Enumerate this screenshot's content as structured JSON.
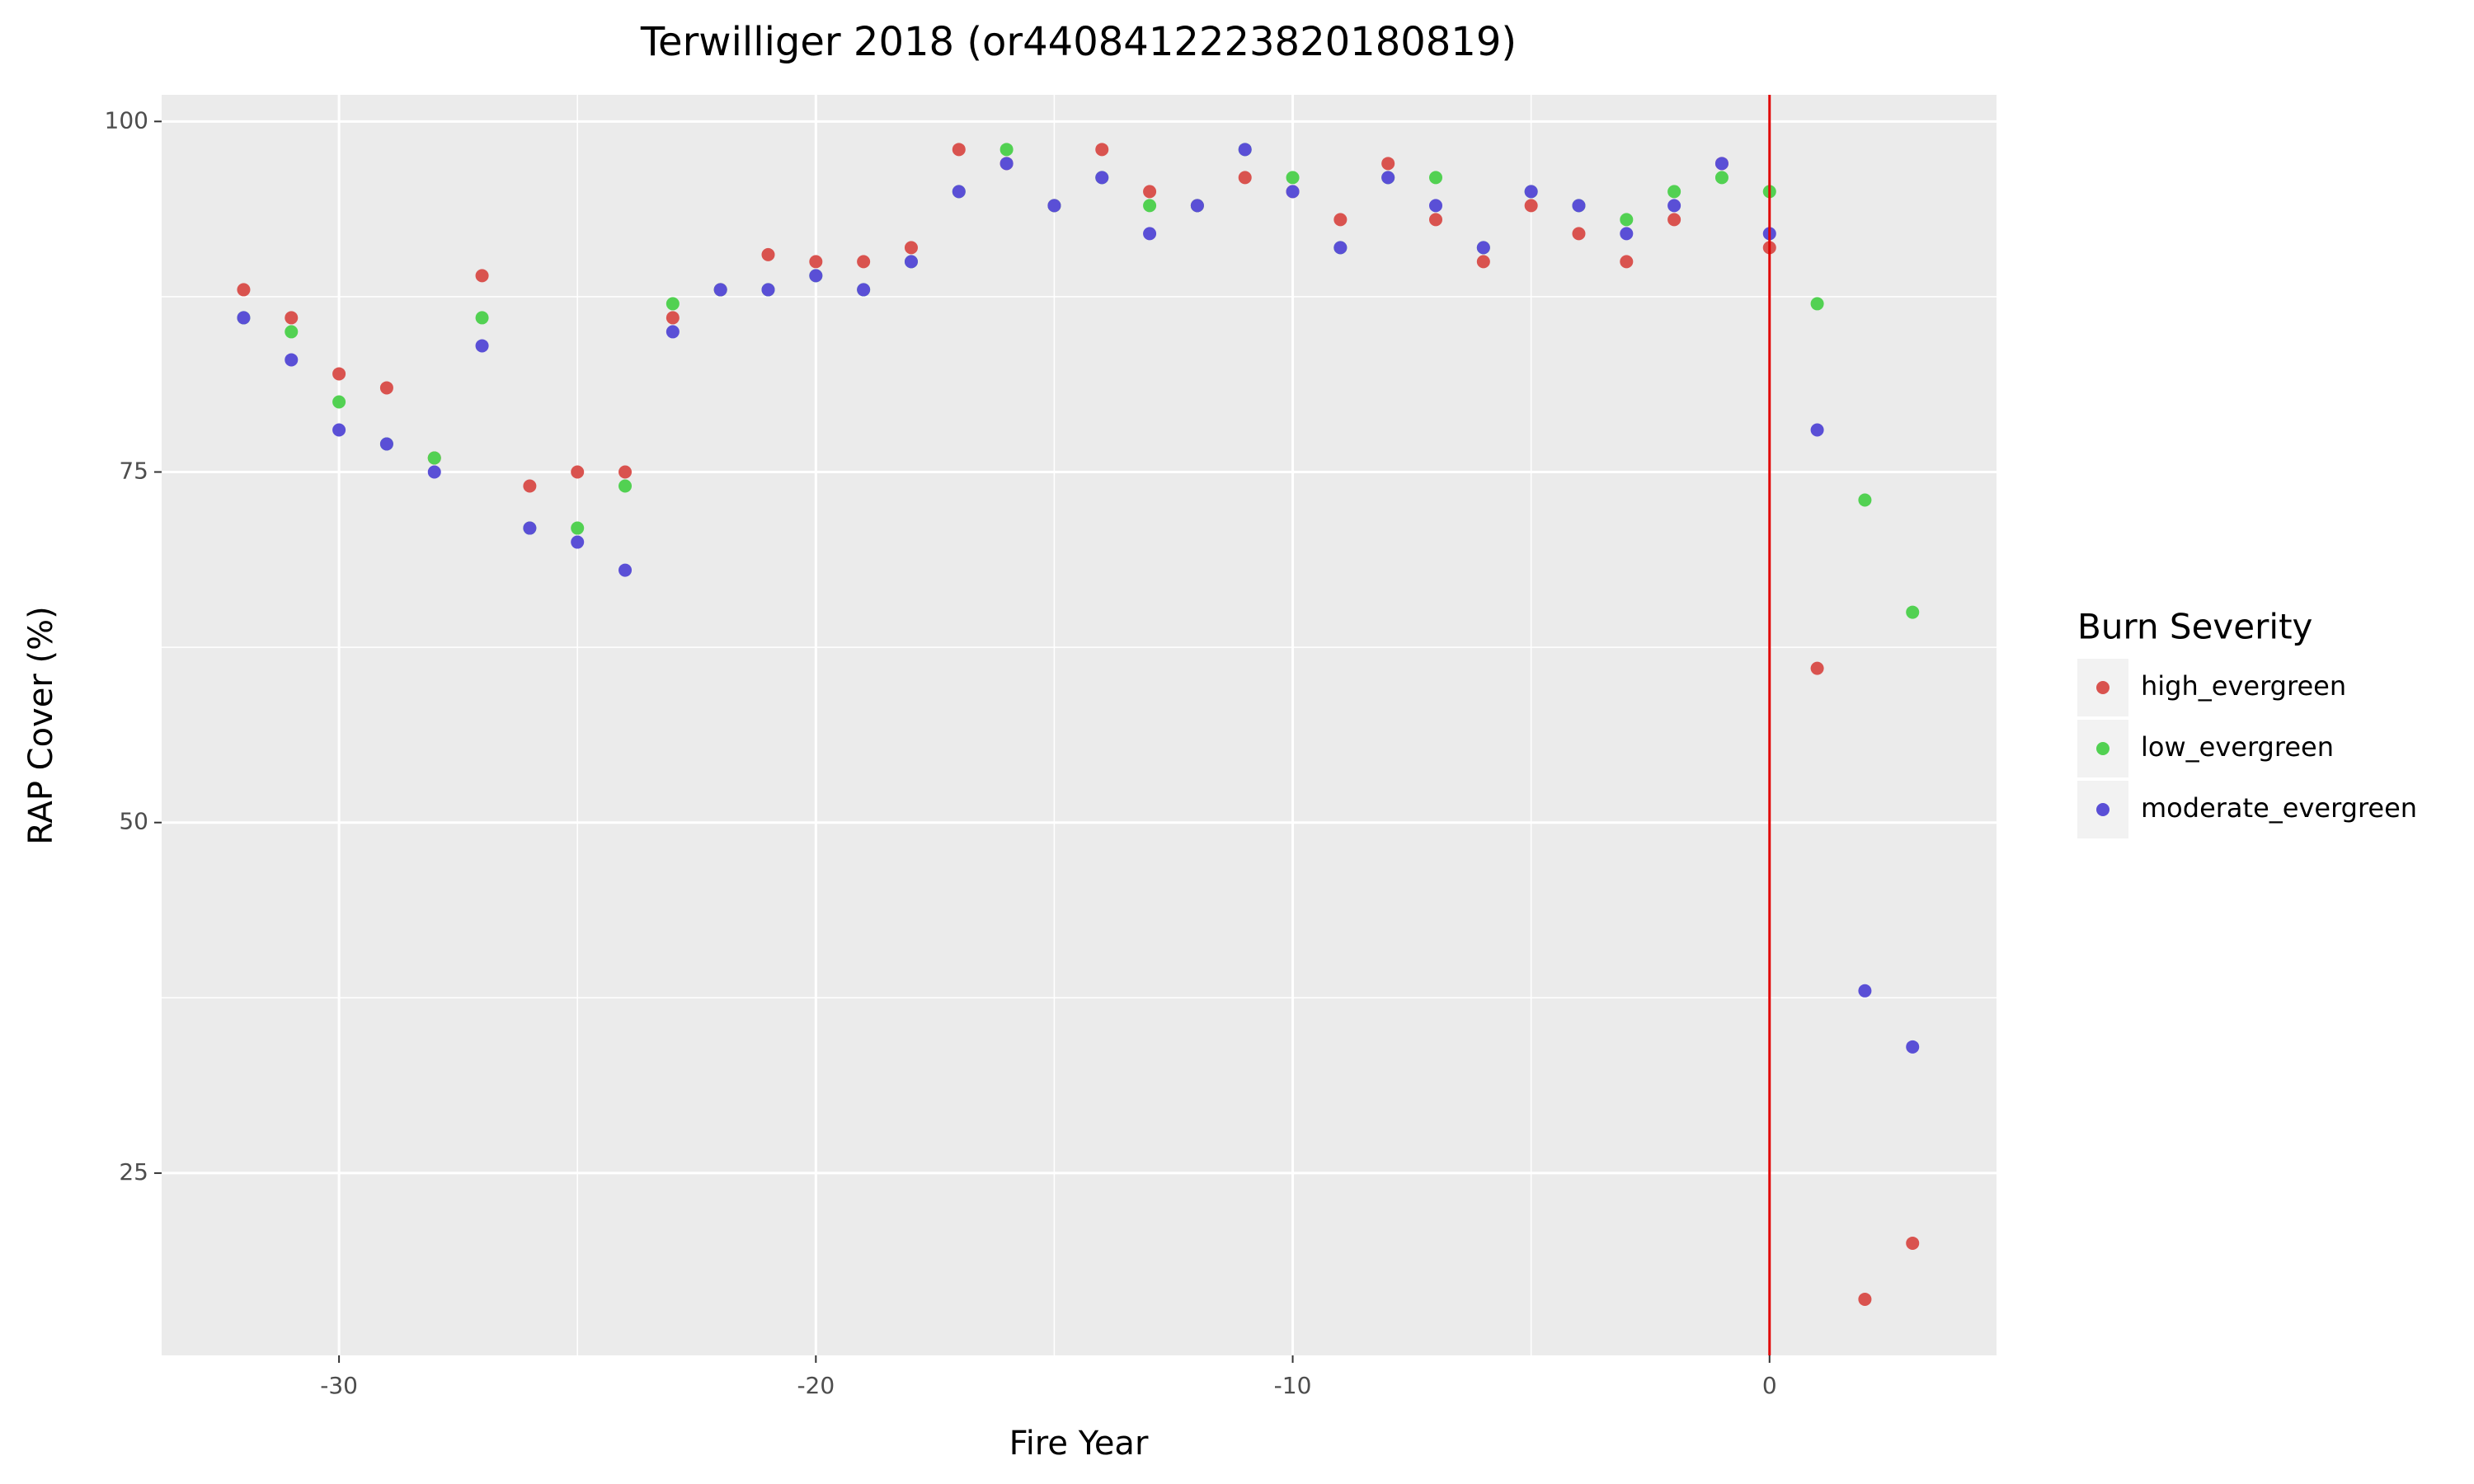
{
  "chart_data": {
    "type": "scatter",
    "title": "Terwilliger 2018 (or4408412223820180819)",
    "x_label": "Fire Year",
    "y_label": "RAP Cover (%)",
    "legend_title": "Burn Severity",
    "legend_position": "right",
    "grid": true,
    "xlim": [
      -33.72,
      4.76
    ],
    "xticks": [
      -30,
      -20,
      -10,
      0
    ],
    "ylim": [
      12,
      101.9
    ],
    "yticks": [
      25,
      50,
      75,
      100
    ],
    "vline": {
      "x": 0,
      "color": "#e00000"
    },
    "x": [
      -32,
      -31,
      -30,
      -29,
      -28,
      -27,
      -26,
      -25,
      -24,
      -23,
      -22,
      -21,
      -20,
      -19,
      -18,
      -17,
      -16,
      -15,
      -14,
      -13,
      -12,
      -11,
      -10,
      -9,
      -8,
      -7,
      -6,
      -5,
      -4,
      -3,
      -2,
      -1,
      0,
      1,
      2,
      3
    ],
    "series": [
      {
        "name": "high_evergreen",
        "color": "#d9534f",
        "values": [
          88,
          86,
          82,
          81,
          76,
          89,
          74,
          75,
          75,
          86,
          88,
          90.5,
          90,
          90,
          91,
          98,
          97,
          94,
          98,
          95,
          94,
          96,
          95,
          93,
          97,
          93,
          90,
          94,
          92,
          90,
          93,
          97,
          91,
          61,
          16,
          20
        ]
      },
      {
        "name": "low_evergreen",
        "color": "#52d152",
        "values": [
          86,
          85,
          80,
          77,
          76,
          86,
          71,
          71,
          74,
          87,
          88,
          88,
          89,
          88,
          90,
          95,
          98,
          94,
          96,
          94,
          94,
          98,
          96,
          91,
          96,
          96,
          91,
          95,
          94,
          93,
          95,
          96,
          95,
          87,
          73,
          65
        ]
      },
      {
        "name": "moderate_evergreen",
        "color": "#5a4fd6",
        "values": [
          86,
          83,
          78,
          77,
          75,
          84,
          71,
          70,
          68,
          85,
          88,
          88,
          89,
          88,
          90,
          95,
          97,
          94,
          96,
          92,
          94,
          98,
          95,
          91,
          96,
          94,
          91,
          95,
          94,
          92,
          94,
          97,
          92,
          78,
          38,
          34
        ]
      }
    ]
  }
}
